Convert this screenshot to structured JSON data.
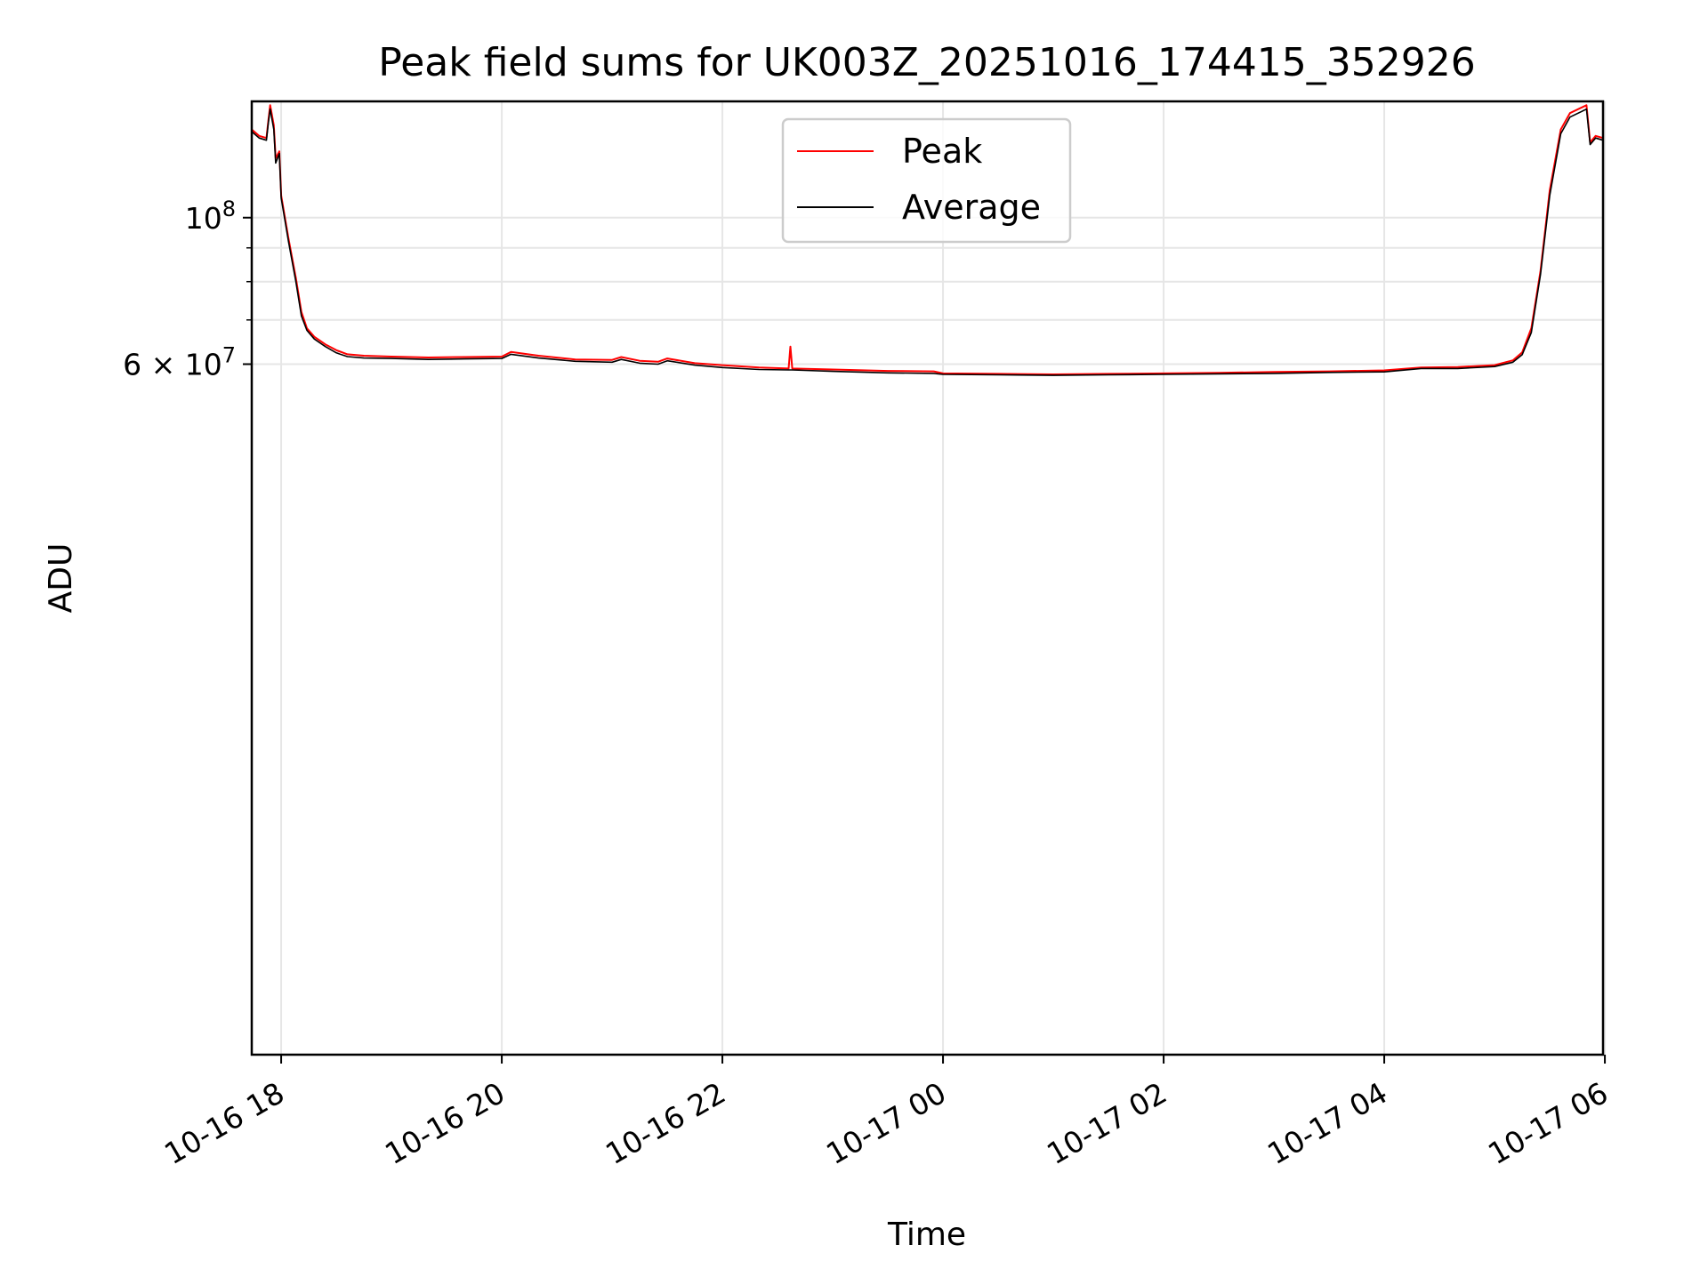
{
  "chart_data": {
    "type": "line",
    "title": "Peak field sums for UK003Z_20251016_174415_352926",
    "xlabel": "Time",
    "ylabel": "ADU",
    "y_scale": "log",
    "xlim": [
      "2025-10-16 17:44",
      "2025-10-17 05:59"
    ],
    "ylim": [
      5400000,
      150000000
    ],
    "grid": true,
    "legend_position": "top-center",
    "x_ticks": [
      "2025-10-16 18:00",
      "2025-10-16 20:00",
      "2025-10-16 22:00",
      "2025-10-17 00:00",
      "2025-10-17 02:00",
      "2025-10-17 04:00",
      "2025-10-17 06:00"
    ],
    "x_tick_labels": [
      "10-16 18",
      "10-16 20",
      "10-16 22",
      "10-17 00",
      "10-17 02",
      "10-17 04",
      "10-17 06"
    ],
    "y_major_ticks": [
      100000000,
      60000000
    ],
    "y_major_tick_labels": [
      {
        "base": "10",
        "exp": "8"
      },
      {
        "prefix": "6 × ",
        "base": "10",
        "exp": "7"
      }
    ],
    "y_minor_ticks": [
      90000000,
      80000000,
      70000000
    ],
    "series": [
      {
        "name": "Peak",
        "color": "#ff0000",
        "points": [
          [
            "2025-10-16 17:44",
            136000000
          ],
          [
            "2025-10-16 17:48",
            133000000
          ],
          [
            "2025-10-16 17:52",
            132000000
          ],
          [
            "2025-10-16 17:53",
            140000000
          ],
          [
            "2025-10-16 17:54",
            148000000
          ],
          [
            "2025-10-16 17:56",
            138000000
          ],
          [
            "2025-10-16 17:57",
            123000000
          ],
          [
            "2025-10-16 17:59",
            126000000
          ],
          [
            "2025-10-16 18:00",
            108000000
          ],
          [
            "2025-10-16 18:04",
            93000000
          ],
          [
            "2025-10-16 18:08",
            81000000
          ],
          [
            "2025-10-16 18:11",
            72000000
          ],
          [
            "2025-10-16 18:14",
            68000000
          ],
          [
            "2025-10-16 18:18",
            66000000
          ],
          [
            "2025-10-16 18:24",
            64300000
          ],
          [
            "2025-10-16 18:30",
            63000000
          ],
          [
            "2025-10-16 18:36",
            62100000
          ],
          [
            "2025-10-16 18:45",
            61800000
          ],
          [
            "2025-10-16 19:00",
            61600000
          ],
          [
            "2025-10-16 19:20",
            61400000
          ],
          [
            "2025-10-16 19:40",
            61500000
          ],
          [
            "2025-10-16 20:00",
            61600000
          ],
          [
            "2025-10-16 20:05",
            62600000
          ],
          [
            "2025-10-16 20:20",
            61800000
          ],
          [
            "2025-10-16 20:40",
            61000000
          ],
          [
            "2025-10-16 21:00",
            60900000
          ],
          [
            "2025-10-16 21:05",
            61500000
          ],
          [
            "2025-10-16 21:15",
            60700000
          ],
          [
            "2025-10-16 21:25",
            60500000
          ],
          [
            "2025-10-16 21:30",
            61200000
          ],
          [
            "2025-10-16 21:45",
            60200000
          ],
          [
            "2025-10-16 22:00",
            59800000
          ],
          [
            "2025-10-16 22:20",
            59300000
          ],
          [
            "2025-10-16 22:36",
            59100000
          ],
          [
            "2025-10-16 22:37",
            63800000
          ],
          [
            "2025-10-16 22:38",
            59100000
          ],
          [
            "2025-10-16 23:00",
            58900000
          ],
          [
            "2025-10-16 23:30",
            58600000
          ],
          [
            "2025-10-16 23:55",
            58500000
          ],
          [
            "2025-10-17 00:00",
            58100000
          ],
          [
            "2025-10-17 00:30",
            58000000
          ],
          [
            "2025-10-17 01:00",
            57900000
          ],
          [
            "2025-10-17 01:30",
            58000000
          ],
          [
            "2025-10-17 02:00",
            58100000
          ],
          [
            "2025-10-17 02:30",
            58200000
          ],
          [
            "2025-10-17 03:00",
            58400000
          ],
          [
            "2025-10-17 03:30",
            58500000
          ],
          [
            "2025-10-17 04:00",
            58700000
          ],
          [
            "2025-10-17 04:20",
            59300000
          ],
          [
            "2025-10-17 04:40",
            59400000
          ],
          [
            "2025-10-17 05:00",
            59800000
          ],
          [
            "2025-10-17 05:10",
            60800000
          ],
          [
            "2025-10-17 05:15",
            62500000
          ],
          [
            "2025-10-17 05:20",
            68000000
          ],
          [
            "2025-10-17 05:25",
            83000000
          ],
          [
            "2025-10-17 05:30",
            110000000
          ],
          [
            "2025-10-17 05:36",
            136000000
          ],
          [
            "2025-10-17 05:41",
            144000000
          ],
          [
            "2025-10-17 05:50",
            148000000
          ],
          [
            "2025-10-17 05:52",
            130000000
          ],
          [
            "2025-10-17 05:55",
            133000000
          ],
          [
            "2025-10-17 05:59",
            132000000
          ]
        ]
      },
      {
        "name": "Average",
        "color": "#000000",
        "points": [
          [
            "2025-10-16 17:44",
            135000000
          ],
          [
            "2025-10-16 17:48",
            132000000
          ],
          [
            "2025-10-16 17:52",
            131000000
          ],
          [
            "2025-10-16 17:53",
            139000000
          ],
          [
            "2025-10-16 17:54",
            146000000
          ],
          [
            "2025-10-16 17:56",
            136000000
          ],
          [
            "2025-10-16 17:57",
            121000000
          ],
          [
            "2025-10-16 17:59",
            125000000
          ],
          [
            "2025-10-16 18:00",
            107000000
          ],
          [
            "2025-10-16 18:04",
            92000000
          ],
          [
            "2025-10-16 18:08",
            80000000
          ],
          [
            "2025-10-16 18:11",
            71000000
          ],
          [
            "2025-10-16 18:14",
            67500000
          ],
          [
            "2025-10-16 18:18",
            65500000
          ],
          [
            "2025-10-16 18:24",
            63800000
          ],
          [
            "2025-10-16 18:30",
            62400000
          ],
          [
            "2025-10-16 18:36",
            61600000
          ],
          [
            "2025-10-16 18:45",
            61300000
          ],
          [
            "2025-10-16 19:00",
            61200000
          ],
          [
            "2025-10-16 19:20",
            61000000
          ],
          [
            "2025-10-16 19:40",
            61100000
          ],
          [
            "2025-10-16 20:00",
            61200000
          ],
          [
            "2025-10-16 20:05",
            62100000
          ],
          [
            "2025-10-16 20:20",
            61300000
          ],
          [
            "2025-10-16 20:40",
            60600000
          ],
          [
            "2025-10-16 21:00",
            60400000
          ],
          [
            "2025-10-16 21:05",
            61000000
          ],
          [
            "2025-10-16 21:15",
            60200000
          ],
          [
            "2025-10-16 21:25",
            60000000
          ],
          [
            "2025-10-16 21:30",
            60700000
          ],
          [
            "2025-10-16 21:45",
            59800000
          ],
          [
            "2025-10-16 22:00",
            59300000
          ],
          [
            "2025-10-16 22:20",
            58900000
          ],
          [
            "2025-10-16 22:36",
            58800000
          ],
          [
            "2025-10-16 22:38",
            58800000
          ],
          [
            "2025-10-16 23:00",
            58500000
          ],
          [
            "2025-10-16 23:30",
            58200000
          ],
          [
            "2025-10-16 23:55",
            58100000
          ],
          [
            "2025-10-17 00:00",
            57900000
          ],
          [
            "2025-10-17 00:30",
            57800000
          ],
          [
            "2025-10-17 01:00",
            57700000
          ],
          [
            "2025-10-17 01:30",
            57800000
          ],
          [
            "2025-10-17 02:00",
            57900000
          ],
          [
            "2025-10-17 02:30",
            58000000
          ],
          [
            "2025-10-17 03:00",
            58100000
          ],
          [
            "2025-10-17 03:30",
            58300000
          ],
          [
            "2025-10-17 04:00",
            58400000
          ],
          [
            "2025-10-17 04:20",
            59100000
          ],
          [
            "2025-10-17 04:40",
            59100000
          ],
          [
            "2025-10-17 05:00",
            59500000
          ],
          [
            "2025-10-17 05:10",
            60400000
          ],
          [
            "2025-10-17 05:15",
            62000000
          ],
          [
            "2025-10-17 05:20",
            67000000
          ],
          [
            "2025-10-17 05:25",
            82000000
          ],
          [
            "2025-10-17 05:30",
            108000000
          ],
          [
            "2025-10-17 05:36",
            134000000
          ],
          [
            "2025-10-17 05:41",
            142000000
          ],
          [
            "2025-10-17 05:50",
            146000000
          ],
          [
            "2025-10-17 05:52",
            129000000
          ],
          [
            "2025-10-17 05:55",
            132000000
          ],
          [
            "2025-10-17 05:59",
            131000000
          ]
        ]
      }
    ]
  }
}
